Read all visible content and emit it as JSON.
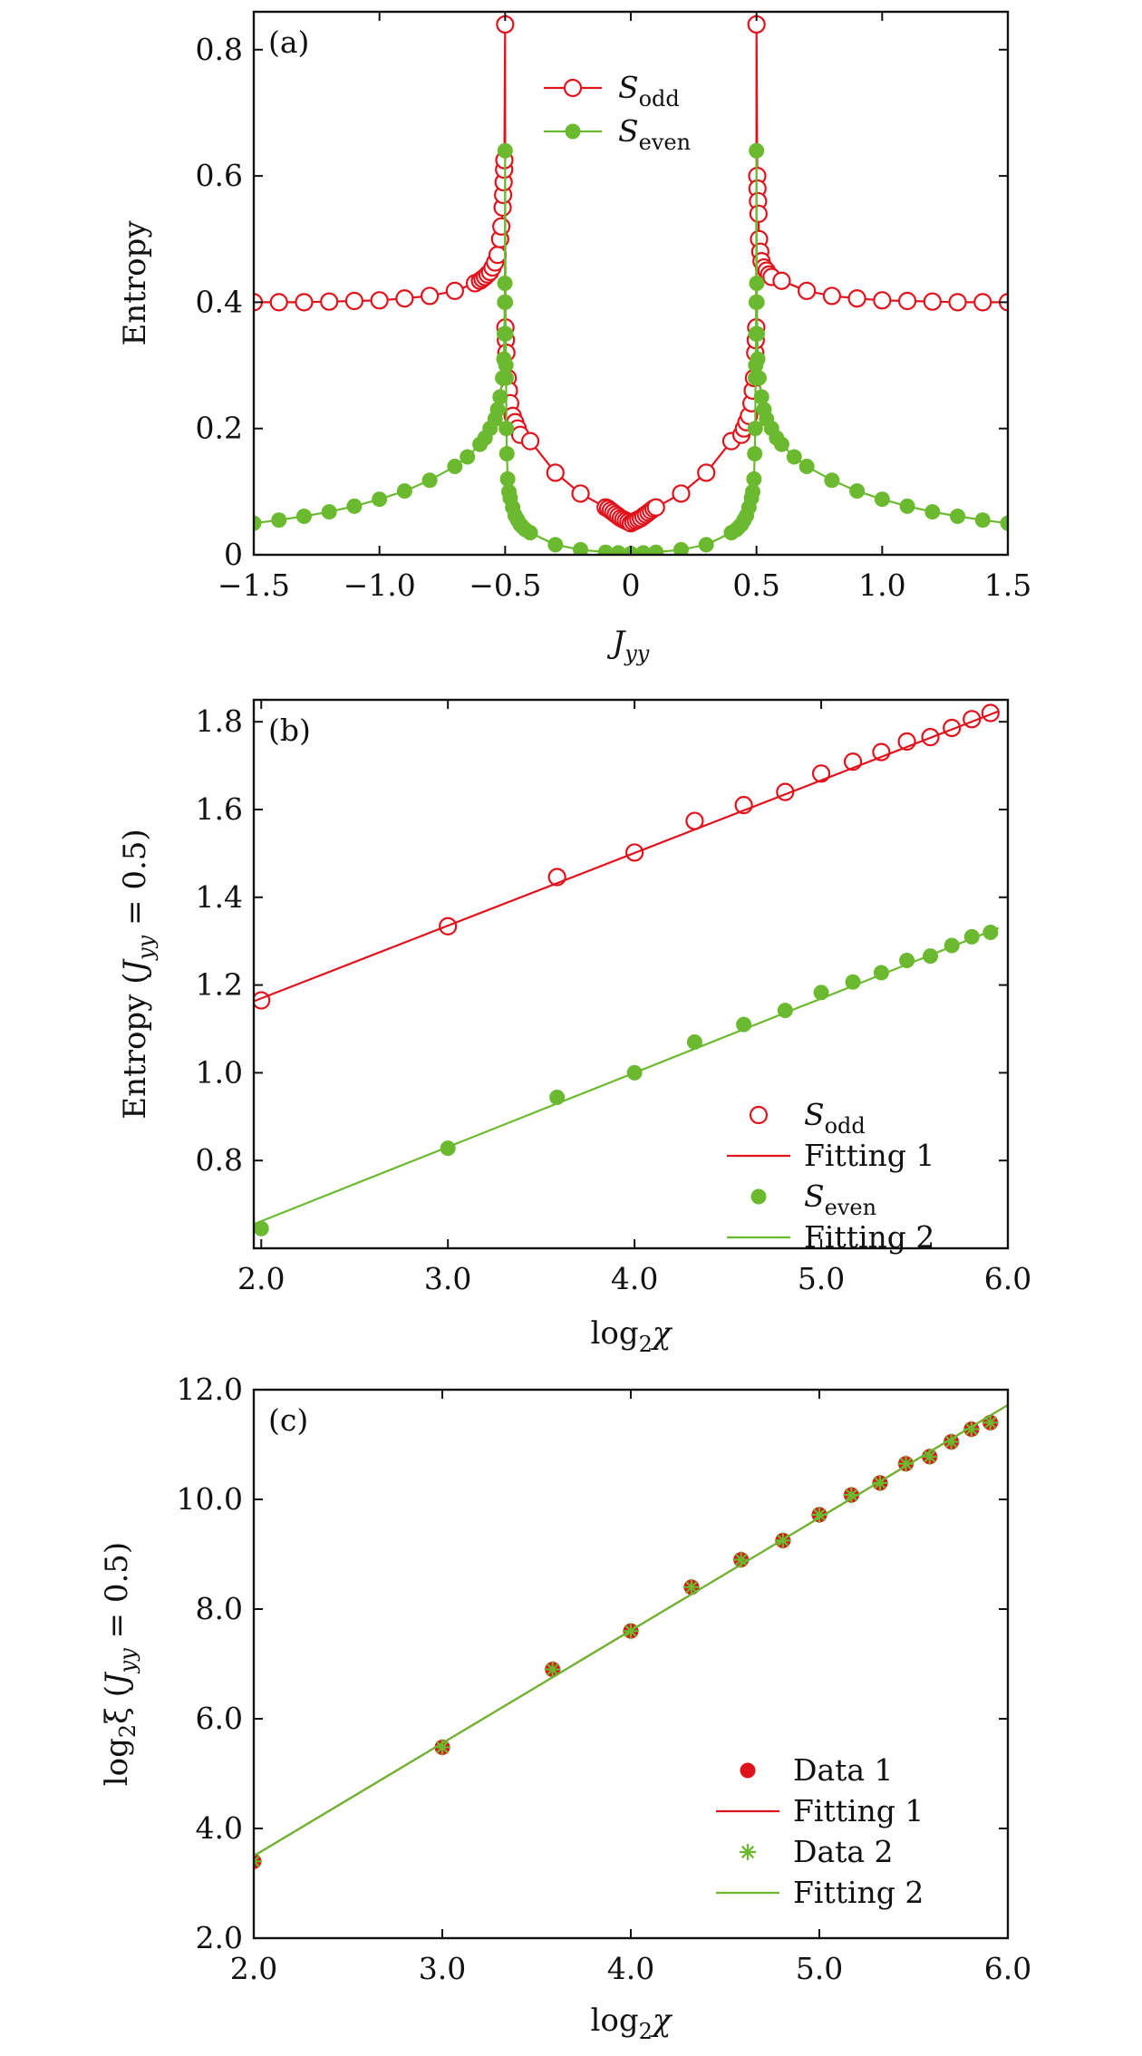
{
  "colors": {
    "red": "#e0121c",
    "green": "#6ab92f",
    "axis": "#111111"
  },
  "chart_data": [
    {
      "id": "a",
      "type": "line",
      "panel_label": "(a)",
      "xlabel": {
        "main": "J",
        "sub": "yy"
      },
      "ylabel": "Entropy",
      "xlim": [
        -1.5,
        1.5
      ],
      "ylim": [
        0,
        0.86
      ],
      "xticks": [
        -1.5,
        -1.0,
        -0.5,
        0,
        0.5,
        1.0,
        1.5
      ],
      "xtick_labels": [
        "−1.5",
        "−1.0",
        "−0.5",
        "0",
        "0.5",
        "1.0",
        "1.5"
      ],
      "yticks": [
        0,
        0.2,
        0.4,
        0.6,
        0.8
      ],
      "ytick_labels": [
        "0",
        "0.2",
        "0.4",
        "0.6",
        "0.8"
      ],
      "legend_position": "top-center",
      "series": [
        {
          "name": "S_odd",
          "legend": {
            "main": "S",
            "sub": "odd"
          },
          "color": "red",
          "marker": "open-circle",
          "points": [
            [
              -1.5,
              0.4
            ],
            [
              -1.4,
              0.4
            ],
            [
              -1.3,
              0.4
            ],
            [
              -1.2,
              0.401
            ],
            [
              -1.1,
              0.402
            ],
            [
              -1.0,
              0.403
            ],
            [
              -0.9,
              0.406
            ],
            [
              -0.8,
              0.41
            ],
            [
              -0.7,
              0.418
            ],
            [
              -0.62,
              0.43
            ],
            [
              -0.6,
              0.434
            ],
            [
              -0.59,
              0.437
            ],
            [
              -0.58,
              0.44
            ],
            [
              -0.57,
              0.444
            ],
            [
              -0.56,
              0.448
            ],
            [
              -0.55,
              0.455
            ],
            [
              -0.54,
              0.463
            ],
            [
              -0.53,
              0.475
            ],
            [
              -0.52,
              0.5
            ],
            [
              -0.515,
              0.52
            ],
            [
              -0.51,
              0.55
            ],
            [
              -0.508,
              0.57
            ],
            [
              -0.506,
              0.59
            ],
            [
              -0.504,
              0.61
            ],
            [
              -0.503,
              0.625
            ],
            [
              -0.5,
              0.84
            ],
            [
              -0.499,
              0.36
            ],
            [
              -0.497,
              0.34
            ],
            [
              -0.495,
              0.32
            ],
            [
              -0.49,
              0.28
            ],
            [
              -0.485,
              0.26
            ],
            [
              -0.48,
              0.24
            ],
            [
              -0.47,
              0.22
            ],
            [
              -0.46,
              0.21
            ],
            [
              -0.45,
              0.2
            ],
            [
              -0.44,
              0.19
            ],
            [
              -0.4,
              0.18
            ],
            [
              -0.3,
              0.13
            ],
            [
              -0.2,
              0.097
            ],
            [
              -0.1,
              0.075
            ],
            [
              -0.09,
              0.073
            ],
            [
              -0.08,
              0.07
            ],
            [
              -0.07,
              0.067
            ],
            [
              -0.06,
              0.064
            ],
            [
              -0.05,
              0.061
            ],
            [
              -0.04,
              0.058
            ],
            [
              -0.03,
              0.056
            ],
            [
              -0.02,
              0.054
            ],
            [
              -0.01,
              0.052
            ],
            [
              0,
              0.05
            ],
            [
              0.01,
              0.052
            ],
            [
              0.02,
              0.054
            ],
            [
              0.03,
              0.056
            ],
            [
              0.04,
              0.058
            ],
            [
              0.05,
              0.061
            ],
            [
              0.06,
              0.064
            ],
            [
              0.07,
              0.067
            ],
            [
              0.08,
              0.07
            ],
            [
              0.09,
              0.073
            ],
            [
              0.1,
              0.075
            ],
            [
              0.2,
              0.097
            ],
            [
              0.3,
              0.13
            ],
            [
              0.4,
              0.18
            ],
            [
              0.44,
              0.19
            ],
            [
              0.45,
              0.2
            ],
            [
              0.46,
              0.21
            ],
            [
              0.47,
              0.22
            ],
            [
              0.48,
              0.24
            ],
            [
              0.485,
              0.26
            ],
            [
              0.49,
              0.28
            ],
            [
              0.495,
              0.32
            ],
            [
              0.497,
              0.34
            ],
            [
              0.499,
              0.36
            ],
            [
              0.5,
              0.84
            ],
            [
              0.503,
              0.6
            ],
            [
              0.504,
              0.58
            ],
            [
              0.506,
              0.56
            ],
            [
              0.508,
              0.54
            ],
            [
              0.51,
              0.5
            ],
            [
              0.515,
              0.48
            ],
            [
              0.52,
              0.465
            ],
            [
              0.53,
              0.455
            ],
            [
              0.54,
              0.45
            ],
            [
              0.55,
              0.444
            ],
            [
              0.56,
              0.44
            ],
            [
              0.6,
              0.434
            ],
            [
              0.7,
              0.418
            ],
            [
              0.8,
              0.41
            ],
            [
              0.9,
              0.406
            ],
            [
              1.0,
              0.403
            ],
            [
              1.1,
              0.402
            ],
            [
              1.2,
              0.401
            ],
            [
              1.3,
              0.4
            ],
            [
              1.4,
              0.4
            ],
            [
              1.5,
              0.4
            ]
          ]
        },
        {
          "name": "S_even",
          "legend": {
            "main": "S",
            "sub": "even"
          },
          "color": "green",
          "marker": "filled-circle",
          "points": [
            [
              -1.5,
              0.05
            ],
            [
              -1.4,
              0.055
            ],
            [
              -1.3,
              0.061
            ],
            [
              -1.2,
              0.068
            ],
            [
              -1.1,
              0.077
            ],
            [
              -1.0,
              0.088
            ],
            [
              -0.9,
              0.101
            ],
            [
              -0.8,
              0.118
            ],
            [
              -0.7,
              0.14
            ],
            [
              -0.65,
              0.155
            ],
            [
              -0.6,
              0.175
            ],
            [
              -0.58,
              0.185
            ],
            [
              -0.56,
              0.2
            ],
            [
              -0.54,
              0.215
            ],
            [
              -0.53,
              0.23
            ],
            [
              -0.52,
              0.25
            ],
            [
              -0.51,
              0.28
            ],
            [
              -0.505,
              0.31
            ],
            [
              -0.503,
              0.35
            ],
            [
              -0.502,
              0.4
            ],
            [
              -0.501,
              0.43
            ],
            [
              -0.5,
              0.64
            ],
            [
              -0.499,
              0.4
            ],
            [
              -0.498,
              0.35
            ],
            [
              -0.497,
              0.3
            ],
            [
              -0.496,
              0.28
            ],
            [
              -0.495,
              0.2
            ],
            [
              -0.493,
              0.16
            ],
            [
              -0.49,
              0.12
            ],
            [
              -0.485,
              0.1
            ],
            [
              -0.48,
              0.09
            ],
            [
              -0.47,
              0.075
            ],
            [
              -0.46,
              0.062
            ],
            [
              -0.45,
              0.055
            ],
            [
              -0.44,
              0.048
            ],
            [
              -0.43,
              0.044
            ],
            [
              -0.42,
              0.04
            ],
            [
              -0.4,
              0.035
            ],
            [
              -0.3,
              0.016
            ],
            [
              -0.2,
              0.008
            ],
            [
              -0.1,
              0.004
            ],
            [
              -0.05,
              0.003
            ],
            [
              0,
              0.002
            ],
            [
              0.05,
              0.003
            ],
            [
              0.1,
              0.004
            ],
            [
              0.2,
              0.008
            ],
            [
              0.3,
              0.016
            ],
            [
              0.4,
              0.035
            ],
            [
              0.42,
              0.04
            ],
            [
              0.43,
              0.044
            ],
            [
              0.44,
              0.048
            ],
            [
              0.45,
              0.055
            ],
            [
              0.46,
              0.062
            ],
            [
              0.47,
              0.075
            ],
            [
              0.48,
              0.09
            ],
            [
              0.485,
              0.1
            ],
            [
              0.49,
              0.12
            ],
            [
              0.493,
              0.16
            ],
            [
              0.495,
              0.2
            ],
            [
              0.496,
              0.28
            ],
            [
              0.497,
              0.3
            ],
            [
              0.498,
              0.35
            ],
            [
              0.499,
              0.4
            ],
            [
              0.5,
              0.64
            ],
            [
              0.501,
              0.43
            ],
            [
              0.502,
              0.4
            ],
            [
              0.503,
              0.35
            ],
            [
              0.505,
              0.31
            ],
            [
              0.51,
              0.28
            ],
            [
              0.52,
              0.25
            ],
            [
              0.53,
              0.23
            ],
            [
              0.54,
              0.215
            ],
            [
              0.56,
              0.2
            ],
            [
              0.58,
              0.185
            ],
            [
              0.6,
              0.175
            ],
            [
              0.65,
              0.155
            ],
            [
              0.7,
              0.14
            ],
            [
              0.8,
              0.118
            ],
            [
              0.9,
              0.101
            ],
            [
              1.0,
              0.088
            ],
            [
              1.1,
              0.077
            ],
            [
              1.2,
              0.068
            ],
            [
              1.3,
              0.061
            ],
            [
              1.4,
              0.055
            ],
            [
              1.5,
              0.05
            ]
          ]
        }
      ]
    },
    {
      "id": "b",
      "type": "scatter",
      "panel_label": "(b)",
      "xlabel": {
        "main": "log",
        "sub": "2",
        "tail": "χ"
      },
      "ylabel": {
        "main": "Entropy (",
        "sym": "J",
        "sub": "yy",
        "tail": " = 0.5)"
      },
      "xlim": [
        1.96,
        6.0
      ],
      "ylim": [
        0.6,
        1.85
      ],
      "xticks": [
        2,
        3,
        4,
        5,
        6
      ],
      "xtick_labels": [
        "2.0",
        "3.0",
        "4.0",
        "5.0",
        "6.0"
      ],
      "yticks": [
        0.8,
        1.0,
        1.2,
        1.4,
        1.6,
        1.8
      ],
      "ytick_labels": [
        "0.8",
        "1.0",
        "1.2",
        "1.4",
        "1.6",
        "1.8"
      ],
      "legend_position": "bottom-right",
      "series": [
        {
          "name": "S_odd",
          "legend": {
            "main": "S",
            "sub": "odd"
          },
          "color": "red",
          "marker": "open-circle",
          "x": [
            2.0,
            3.0,
            3.585,
            4.0,
            4.322,
            4.585,
            4.807,
            5.0,
            5.17,
            5.322,
            5.459,
            5.585,
            5.7,
            5.807,
            5.907
          ],
          "y": [
            1.165,
            1.334,
            1.446,
            1.502,
            1.574,
            1.61,
            1.64,
            1.682,
            1.709,
            1.731,
            1.755,
            1.765,
            1.786,
            1.806,
            1.82
          ]
        },
        {
          "name": "Fitting 1",
          "legend": {
            "main": "Fitting 1"
          },
          "color": "red",
          "marker": "line",
          "x": [
            1.96,
            5.95
          ],
          "y": [
            1.163,
            1.824
          ]
        },
        {
          "name": "S_even",
          "legend": {
            "main": "S",
            "sub": "even"
          },
          "color": "green",
          "marker": "filled-circle",
          "x": [
            2.0,
            3.0,
            3.585,
            4.0,
            4.322,
            4.585,
            4.807,
            5.0,
            5.17,
            5.322,
            5.459,
            5.585,
            5.7,
            5.807,
            5.907
          ],
          "y": [
            0.645,
            0.828,
            0.944,
            1.0,
            1.07,
            1.11,
            1.142,
            1.183,
            1.207,
            1.228,
            1.256,
            1.266,
            1.29,
            1.31,
            1.32
          ]
        },
        {
          "name": "Fitting 2",
          "legend": {
            "main": "Fitting 2"
          },
          "color": "green",
          "marker": "line",
          "x": [
            1.96,
            5.95
          ],
          "y": [
            0.655,
            1.33
          ]
        }
      ]
    },
    {
      "id": "c",
      "type": "scatter",
      "panel_label": "(c)",
      "xlabel": {
        "main": "log",
        "sub": "2",
        "tail": "χ"
      },
      "ylabel": {
        "main": "log",
        "sub": "2",
        "tail": "ξ (",
        "sym": "J",
        "sub2": "yy",
        "tail2": " = 0.5)"
      },
      "xlim": [
        2.0,
        6.0
      ],
      "ylim": [
        2.0,
        12.0
      ],
      "xticks": [
        2,
        3,
        4,
        5,
        6
      ],
      "xtick_labels": [
        "2.0",
        "3.0",
        "4.0",
        "5.0",
        "6.0"
      ],
      "yticks": [
        2,
        4,
        6,
        8,
        10,
        12
      ],
      "ytick_labels": [
        "2.0",
        "4.0",
        "6.0",
        "8.0",
        "10.0",
        "12.0"
      ],
      "legend_position": "bottom-right",
      "series": [
        {
          "name": "Data 1",
          "legend": {
            "main": "Data 1"
          },
          "color": "red",
          "marker": "filled-circle",
          "x": [
            2.0,
            3.0,
            3.585,
            4.0,
            4.322,
            4.585,
            4.807,
            5.0,
            5.17,
            5.322,
            5.459,
            5.585,
            5.7,
            5.807,
            5.907
          ],
          "y": [
            3.4,
            5.48,
            6.9,
            7.6,
            8.4,
            8.9,
            9.25,
            9.72,
            10.08,
            10.3,
            10.65,
            10.78,
            11.05,
            11.28,
            11.4
          ]
        },
        {
          "name": "Fitting 1",
          "legend": {
            "main": "Fitting 1"
          },
          "color": "red",
          "marker": "line",
          "x": [
            2.0,
            6.0
          ],
          "y": [
            3.5,
            11.72
          ]
        },
        {
          "name": "Data 2",
          "legend": {
            "main": "Data 2"
          },
          "color": "green",
          "marker": "asterisk",
          "x": [
            2.0,
            3.0,
            3.585,
            4.0,
            4.322,
            4.585,
            4.807,
            5.0,
            5.17,
            5.322,
            5.459,
            5.585,
            5.7,
            5.807,
            5.907
          ],
          "y": [
            3.4,
            5.48,
            6.9,
            7.6,
            8.4,
            8.9,
            9.25,
            9.72,
            10.08,
            10.3,
            10.65,
            10.78,
            11.05,
            11.28,
            11.4
          ]
        },
        {
          "name": "Fitting 2",
          "legend": {
            "main": "Fitting 2"
          },
          "color": "green",
          "marker": "line",
          "x": [
            2.0,
            6.0
          ],
          "y": [
            3.5,
            11.72
          ]
        }
      ]
    }
  ]
}
